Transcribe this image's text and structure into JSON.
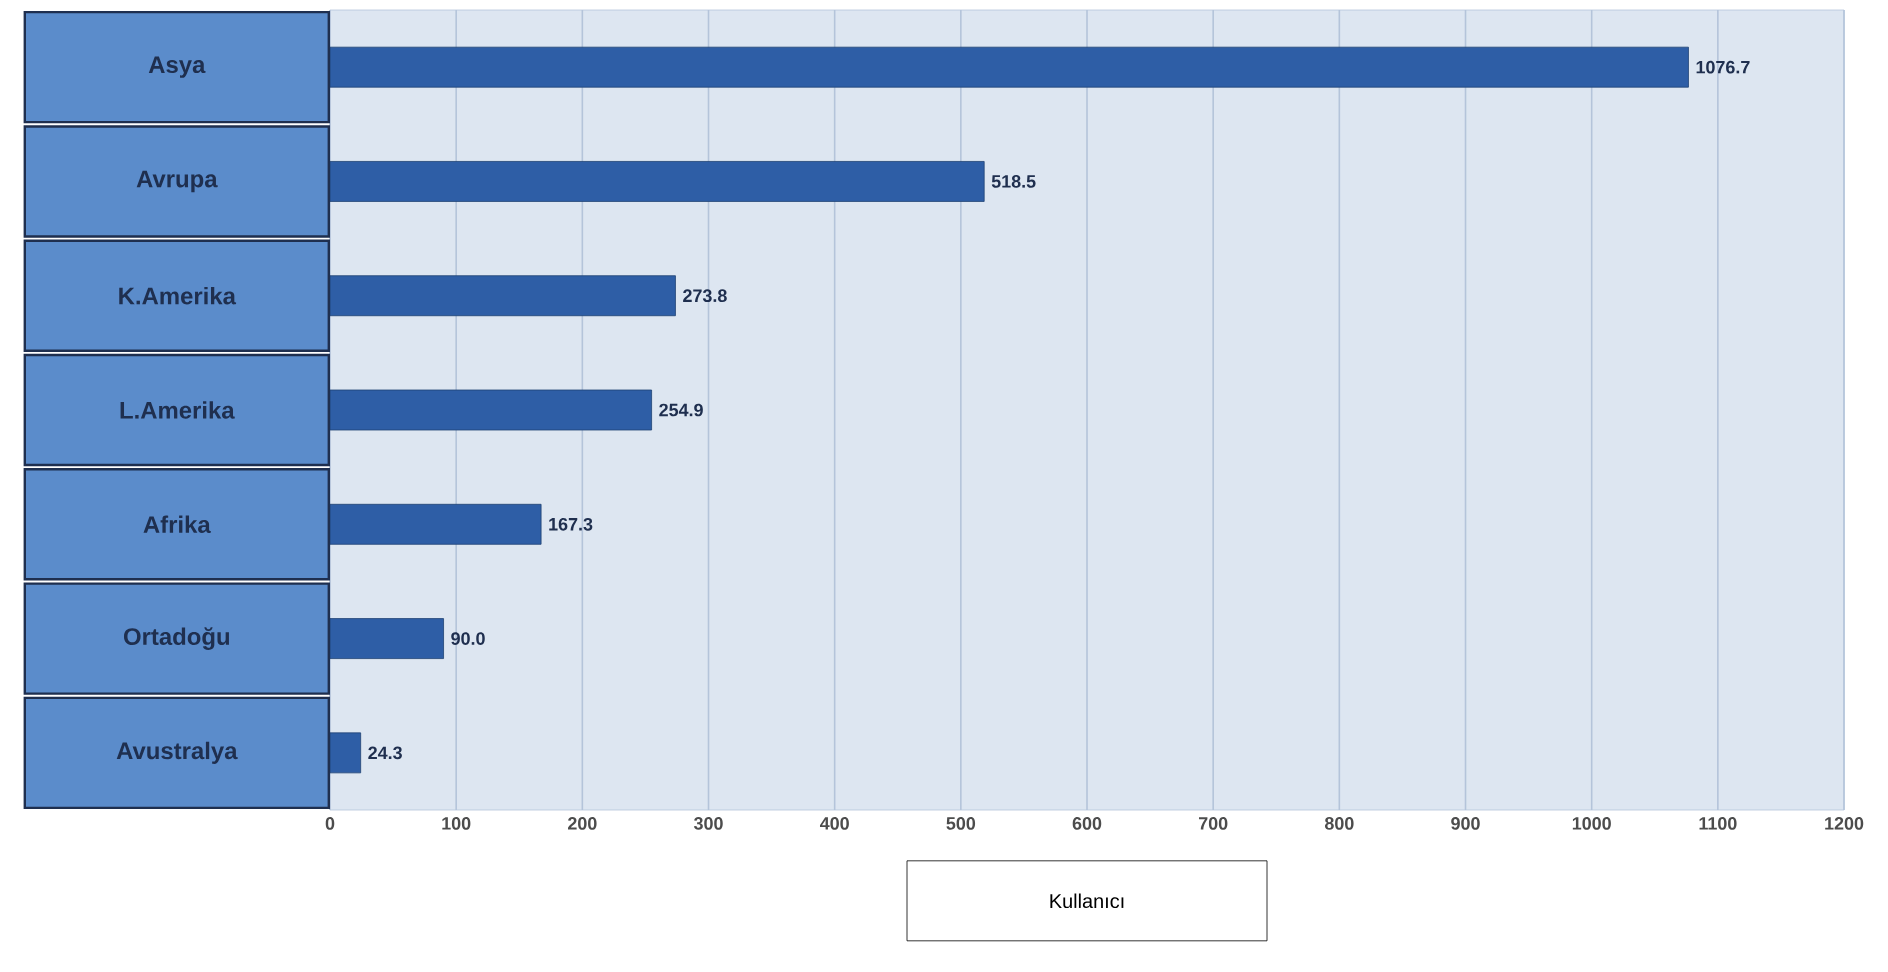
{
  "chart_data": {
    "type": "bar",
    "orientation": "horizontal",
    "categories": [
      "Asya",
      "Avrupa",
      "K.Amerika",
      "L.Amerika",
      "Afrika",
      "Ortadoğu",
      "Avustralya"
    ],
    "values": [
      1076.7,
      518.5,
      273.8,
      254.9,
      167.3,
      90.0,
      24.3
    ],
    "color": "#2e5ea6",
    "xlabel": "Kullanıcı",
    "xlim": [
      0,
      1200
    ],
    "xticks": [
      0,
      100,
      200,
      300,
      400,
      500,
      600,
      700,
      800,
      900,
      1000,
      1100,
      1200
    ],
    "grid": "x",
    "value_labels": [
      "1076.7",
      "518.5",
      "273.8",
      "254.9",
      "167.3",
      "90.0",
      "24.3"
    ]
  }
}
